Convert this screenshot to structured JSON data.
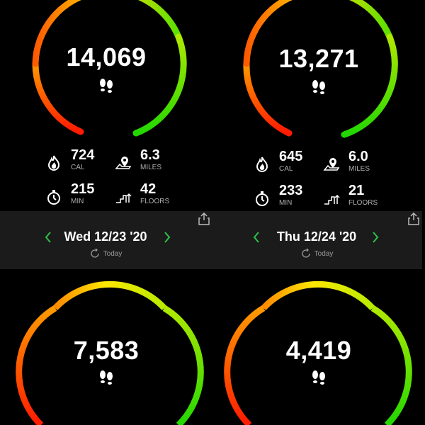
{
  "colors": {
    "ring_red": "#ff1a00",
    "ring_yellow": "#ffe000",
    "ring_green": "#33e000",
    "arrow_green": "#2fc24a"
  },
  "days": [
    {
      "steps": "14,069",
      "cal": "724",
      "cal_unit": "CAL",
      "miles": "6.3",
      "miles_unit": "MILES",
      "min": "215",
      "min_unit": "MIN",
      "floors": "42",
      "floors_unit": "FLOORS",
      "date": "Wed 12/23 '20",
      "today": "Today"
    },
    {
      "steps": "13,271",
      "cal": "645",
      "cal_unit": "CAL",
      "miles": "6.0",
      "miles_unit": "MILES",
      "min": "233",
      "min_unit": "MIN",
      "floors": "21",
      "floors_unit": "FLOORS",
      "date": "Thu 12/24 '20",
      "today": "Today"
    },
    {
      "steps": "7,583"
    },
    {
      "steps": "4,419"
    }
  ],
  "icons": {
    "steps": "footsteps-icon",
    "cal": "flame-icon",
    "miles": "map-pin-icon",
    "min": "stopwatch-icon",
    "floors": "stairs-icon",
    "prev": "chevron-left-icon",
    "next": "chevron-right-icon",
    "share": "share-icon",
    "today": "refresh-today-icon"
  }
}
